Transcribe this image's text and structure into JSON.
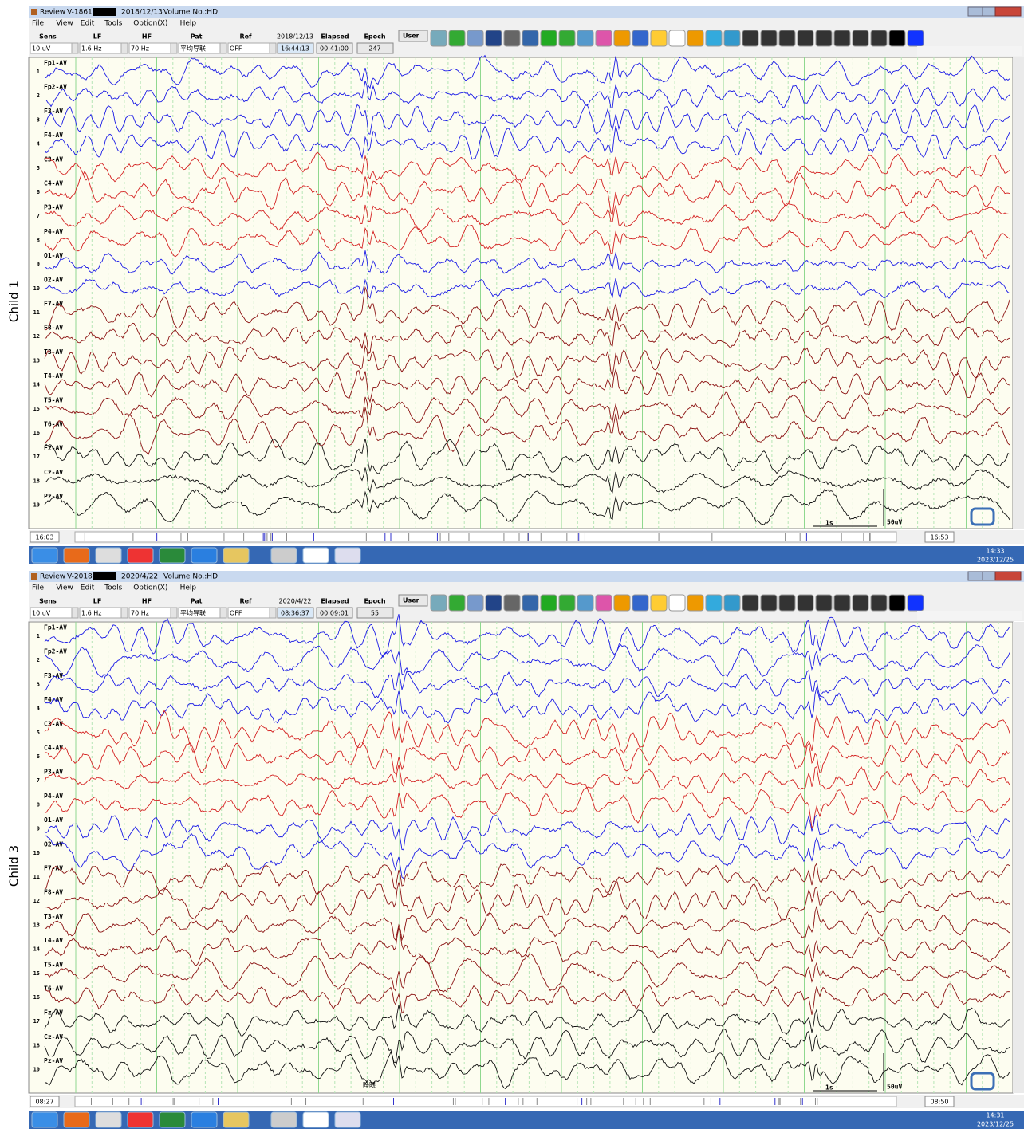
{
  "side_labels": [
    "Child 1",
    "Child 3"
  ],
  "menu": [
    "File",
    "View",
    "Edit",
    "Tools",
    "Option(X)",
    "Help"
  ],
  "toolbar_headers": [
    "Sens",
    "LF",
    "HF",
    "Pat",
    "Ref",
    "Elapsed",
    "Epoch"
  ],
  "toolbar_values": [
    "10 uV",
    "1.6 Hz",
    "70 Hz",
    "平均导联",
    "OFF"
  ],
  "user_button": "User",
  "channels": [
    {
      "number": "1",
      "label": "Fp1-AV",
      "color": "#1a1ae6"
    },
    {
      "number": "2",
      "label": "Fp2-AV",
      "color": "#1a1ae6"
    },
    {
      "number": "3",
      "label": "F3-AV",
      "color": "#1a1ae6"
    },
    {
      "number": "4",
      "label": "F4-AV",
      "color": "#1a1ae6"
    },
    {
      "number": "5",
      "label": "C3-AV",
      "color": "#d42020"
    },
    {
      "number": "6",
      "label": "C4-AV",
      "color": "#d42020"
    },
    {
      "number": "7",
      "label": "P3-AV",
      "color": "#d42020"
    },
    {
      "number": "8",
      "label": "P4-AV",
      "color": "#d42020"
    },
    {
      "number": "9",
      "label": "O1-AV",
      "color": "#1a1ae6"
    },
    {
      "number": "10",
      "label": "O2-AV",
      "color": "#1a1ae6"
    },
    {
      "number": "11",
      "label": "F7-AV",
      "color": "#8a1010"
    },
    {
      "number": "12",
      "label": "F8-AV",
      "color": "#8a1010"
    },
    {
      "number": "13",
      "label": "T3-AV",
      "color": "#8a1010"
    },
    {
      "number": "14",
      "label": "T4-AV",
      "color": "#8a1010"
    },
    {
      "number": "15",
      "label": "T5-AV",
      "color": "#8a1010"
    },
    {
      "number": "16",
      "label": "T6-AV",
      "color": "#8a1010"
    },
    {
      "number": "17",
      "label": "Fz-AV",
      "color": "#111111"
    },
    {
      "number": "18",
      "label": "Cz-AV",
      "color": "#111111"
    },
    {
      "number": "19",
      "label": "Pz-AV",
      "color": "#111111"
    }
  ],
  "scale": {
    "time": "1s",
    "amplitude": "50uV"
  },
  "panels": [
    {
      "app": "Review",
      "id": "V-186167",
      "date": "2018/12/13",
      "volume": "Volume No.:HD",
      "time": "16:44:13",
      "elapsed": "00:41:00",
      "epoch": "247",
      "nav_start": "16:03",
      "nav_end": "16:53",
      "clock_time": "14:33",
      "clock_date": "2023/12/25",
      "annotation": null
    },
    {
      "app": "Review",
      "id": "V-201844",
      "date": "2020/4/22",
      "volume": "Volume No.:HD",
      "time": "08:36:37",
      "elapsed": "00:09:01",
      "epoch": "55",
      "nav_start": "08:27",
      "nav_end": "08:50",
      "clock_time": "14:31",
      "clock_date": "2023/12/25",
      "annotation": "睁眼"
    }
  ]
}
